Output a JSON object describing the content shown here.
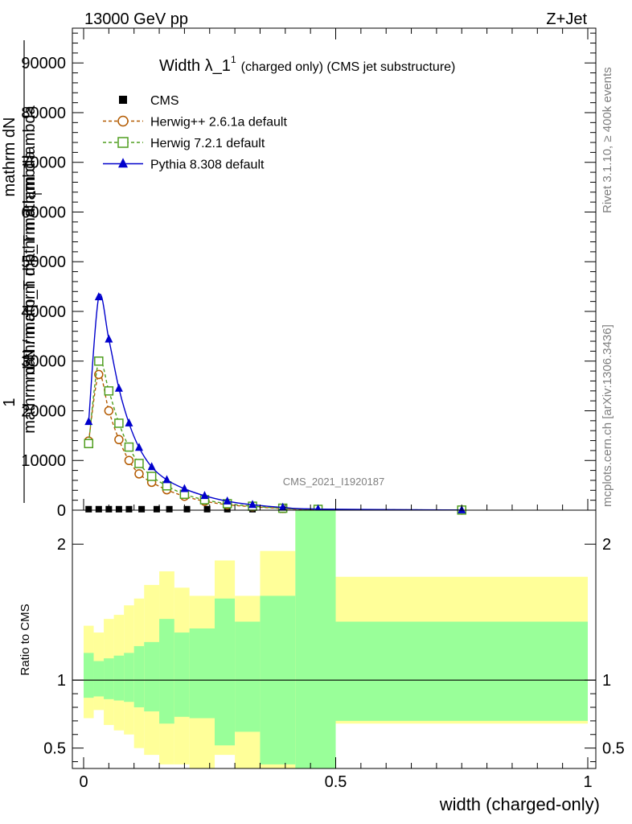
{
  "header": {
    "left": "13000 GeV pp",
    "right": "Z+Jet",
    "side_top": "Rivet 3.1.10, ≥ 400k events",
    "side_bottom": "mcplots.cern.ch [arXiv:1306.3436]",
    "watermark": "CMS_2021_I1920187"
  },
  "chart_data": [
    {
      "type": "line",
      "panel": "main",
      "title_main": "Width λ_1",
      "title_sup": "1",
      "title_rest": "(charged only) (CMS jet substructure)",
      "ylabel": {
        "frac_top": "1",
        "line1": "mathrm d²N / mathrm d p_T mathrm d lambda",
        "line2": "mathrm d p_T mathrm d lambda",
        "line3": "mathrm dN",
        "sub": "T"
      },
      "xlim": [
        -0.02,
        1.0
      ],
      "ylim": [
        0,
        97000
      ],
      "yticks": [
        10000,
        20000,
        30000,
        40000,
        50000,
        60000,
        70000,
        80000,
        90000
      ],
      "ytick_labels": [
        "10000",
        "20000",
        "30000",
        "40000",
        "50000",
        "60000",
        "70000",
        "80000",
        "90000"
      ],
      "zero_label": "0",
      "legend": [
        {
          "name": "CMS",
          "color": "#000000",
          "marker": "square-filled",
          "dash": false
        },
        {
          "name": "Herwig++ 2.6.1a default",
          "color": "#b35a00",
          "marker": "circle-open",
          "dash": true
        },
        {
          "name": "Herwig 7.2.1 default",
          "color": "#4f9e1f",
          "marker": "square-open",
          "dash": true
        },
        {
          "name": "Pythia 8.308 default",
          "color": "#0000cc",
          "marker": "triangle-filled",
          "dash": false
        }
      ],
      "series": [
        {
          "name": "CMS",
          "x": [
            0.01,
            0.03,
            0.05,
            0.07,
            0.09,
            0.115,
            0.145,
            0.17,
            0.205,
            0.245,
            0.285,
            0.335,
            0.395,
            0.465,
            0.75
          ],
          "values": [
            200,
            200,
            200,
            200,
            200,
            200,
            200,
            200,
            200,
            200,
            200,
            200,
            100,
            50,
            10
          ]
        },
        {
          "name": "Herwig++ 2.6.1a default",
          "x": [
            0.01,
            0.03,
            0.05,
            0.07,
            0.09,
            0.11,
            0.135,
            0.165,
            0.2,
            0.24,
            0.285,
            0.335,
            0.395,
            0.465,
            0.75
          ],
          "values": [
            13900,
            27300,
            20000,
            14200,
            10000,
            7300,
            5600,
            4100,
            2800,
            1800,
            1100,
            700,
            350,
            150,
            20
          ]
        },
        {
          "name": "Herwig 7.2.1 default",
          "x": [
            0.01,
            0.03,
            0.05,
            0.07,
            0.09,
            0.11,
            0.135,
            0.165,
            0.2,
            0.24,
            0.285,
            0.335,
            0.395,
            0.465,
            0.75
          ],
          "values": [
            13400,
            30000,
            24000,
            17500,
            12700,
            9400,
            6800,
            4900,
            3200,
            2100,
            1300,
            800,
            400,
            170,
            25
          ]
        },
        {
          "name": "Pythia 8.308 default",
          "x": [
            0.01,
            0.03,
            0.05,
            0.07,
            0.09,
            0.11,
            0.135,
            0.165,
            0.2,
            0.24,
            0.285,
            0.335,
            0.395,
            0.465,
            0.75
          ],
          "values": [
            17800,
            42900,
            34400,
            24500,
            17500,
            12600,
            8700,
            6100,
            4300,
            2900,
            1800,
            1100,
            550,
            220,
            30
          ]
        }
      ]
    },
    {
      "type": "area",
      "panel": "ratio",
      "ylabel": "Ratio to CMS",
      "xlabel": "width (charged-only)",
      "xlim": [
        -0.02,
        1.0
      ],
      "ylim": [
        0.35,
        2.25
      ],
      "yticks": [
        0.5,
        1,
        2
      ],
      "ytick_labels": [
        "0.5",
        "1",
        "2"
      ],
      "xticks": [
        0,
        0.5,
        1
      ],
      "xtick_labels": [
        "0",
        "0.5",
        "1"
      ],
      "reference": 1,
      "bins": [
        0,
        0.02,
        0.04,
        0.06,
        0.08,
        0.1,
        0.12,
        0.15,
        0.18,
        0.21,
        0.26,
        0.3,
        0.35,
        0.42,
        0.5,
        1.0
      ],
      "band_outer": [
        [
          0.72,
          1.4
        ],
        [
          0.78,
          1.35
        ],
        [
          0.67,
          1.45
        ],
        [
          0.63,
          1.48
        ],
        [
          0.6,
          1.55
        ],
        [
          0.5,
          1.6
        ],
        [
          0.45,
          1.7
        ],
        [
          0.38,
          1.8
        ],
        [
          0.38,
          1.68
        ],
        [
          0.3,
          1.62
        ],
        [
          0.45,
          1.88
        ],
        [
          0.35,
          1.62
        ],
        [
          0.3,
          1.95
        ],
        [
          0.2,
          2.4
        ],
        [
          0.68,
          1.76
        ]
      ],
      "band_inner": [
        [
          0.87,
          1.2
        ],
        [
          0.88,
          1.14
        ],
        [
          0.86,
          1.16
        ],
        [
          0.85,
          1.18
        ],
        [
          0.84,
          1.2
        ],
        [
          0.8,
          1.25
        ],
        [
          0.77,
          1.28
        ],
        [
          0.68,
          1.45
        ],
        [
          0.73,
          1.35
        ],
        [
          0.72,
          1.38
        ],
        [
          0.52,
          1.6
        ],
        [
          0.62,
          1.43
        ],
        [
          0.38,
          1.62
        ],
        [
          0.0,
          3.0
        ],
        [
          0.7,
          1.43
        ]
      ],
      "colors": {
        "outer": "#ffff99",
        "inner": "#99ff99"
      }
    }
  ]
}
